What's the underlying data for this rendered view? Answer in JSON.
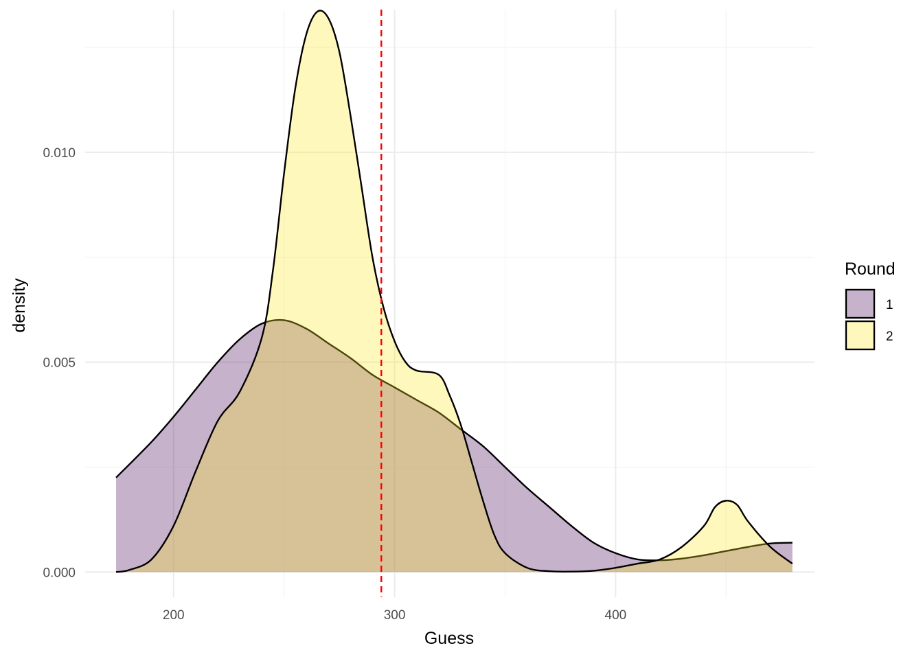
{
  "chart_data": {
    "type": "density",
    "title": "",
    "xlabel": "Guess",
    "ylabel": "density",
    "xlim": [
      160,
      490
    ],
    "ylim": [
      -0.0006,
      0.0134
    ],
    "x_ticks": [
      200,
      300,
      400
    ],
    "x_tick_labels": [
      "200",
      "300",
      "400"
    ],
    "y_ticks": [
      0.0,
      0.005,
      0.01
    ],
    "y_tick_labels": [
      "0.000",
      "0.005",
      "0.010"
    ],
    "grid": true,
    "reference_line": {
      "x": 294,
      "color": "#ff0000",
      "style": "dashed"
    },
    "legend": {
      "title": "Round",
      "position": "right"
    },
    "series": [
      {
        "name": "1",
        "color": "#440154",
        "fill_opacity": 0.3,
        "x": [
          174,
          190,
          200,
          210,
          220,
          230,
          240,
          250,
          260,
          270,
          280,
          290,
          300,
          310,
          320,
          330,
          340,
          350,
          360,
          370,
          380,
          390,
          400,
          410,
          420,
          430,
          440,
          450,
          460,
          470,
          480
        ],
        "y": [
          0.00225,
          0.0031,
          0.0037,
          0.00435,
          0.005,
          0.00555,
          0.00592,
          0.006,
          0.0058,
          0.00545,
          0.0051,
          0.0047,
          0.0044,
          0.0041,
          0.0038,
          0.0034,
          0.003,
          0.0025,
          0.002,
          0.00155,
          0.0011,
          0.0007,
          0.00045,
          0.0003,
          0.00028,
          0.00032,
          0.0004,
          0.0005,
          0.0006,
          0.00068,
          0.0007
        ]
      },
      {
        "name": "2",
        "color": "#FDE725",
        "fill_opacity": 0.3,
        "x": [
          174,
          180,
          190,
          200,
          210,
          220,
          230,
          240,
          245,
          250,
          255,
          260,
          265,
          270,
          275,
          280,
          285,
          290,
          295,
          300,
          305,
          310,
          320,
          325,
          330,
          335,
          340,
          345,
          350,
          360,
          370,
          380,
          390,
          400,
          410,
          420,
          430,
          440,
          445,
          450,
          455,
          460,
          470,
          480
        ],
        "y": [
          0.0,
          5e-05,
          0.0003,
          0.0011,
          0.0024,
          0.0036,
          0.0043,
          0.0056,
          0.0072,
          0.0095,
          0.0115,
          0.0128,
          0.01335,
          0.0132,
          0.0124,
          0.0109,
          0.0092,
          0.0075,
          0.0063,
          0.0055,
          0.005,
          0.0048,
          0.0047,
          0.0042,
          0.0035,
          0.0026,
          0.0017,
          0.0009,
          0.00045,
          0.0001,
          2e-05,
          1e-05,
          3e-05,
          0.0001,
          0.0002,
          0.0003,
          0.0006,
          0.0011,
          0.00155,
          0.0017,
          0.0016,
          0.0012,
          0.0006,
          0.0002
        ]
      }
    ]
  }
}
